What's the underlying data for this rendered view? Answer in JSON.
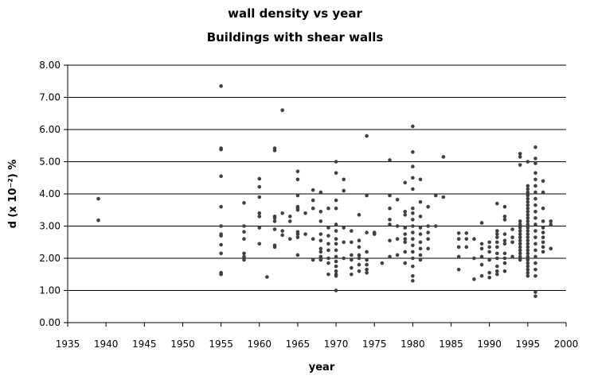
{
  "chart_data": {
    "type": "scatter",
    "title": "wall density vs year",
    "subtitle": "Buildings with shear walls",
    "xlabel": "year",
    "ylabel": "d (x 10⁻²) %",
    "xlim": [
      1935,
      2000
    ],
    "ylim": [
      0,
      8
    ],
    "xticks": [
      "1935",
      "1940",
      "1945",
      "1950",
      "1955",
      "1960",
      "1965",
      "1970",
      "1975",
      "1980",
      "1985",
      "1990",
      "1995",
      "2000"
    ],
    "yticks": [
      "0.00",
      "1.00",
      "2.00",
      "3.00",
      "4.00",
      "5.00",
      "6.00",
      "7.00",
      "8.00"
    ],
    "grid": "horizontal",
    "legend": "none",
    "marker_color": "#404040",
    "points": [
      [
        1939,
        3.85
      ],
      [
        1939,
        3.18
      ],
      [
        1955,
        7.35
      ],
      [
        1955,
        5.42
      ],
      [
        1955,
        5.38
      ],
      [
        1955,
        4.55
      ],
      [
        1955,
        3.6
      ],
      [
        1955,
        3.0
      ],
      [
        1955,
        2.75
      ],
      [
        1955,
        2.7
      ],
      [
        1955,
        2.42
      ],
      [
        1955,
        2.15
      ],
      [
        1955,
        1.55
      ],
      [
        1955,
        1.5
      ],
      [
        1958,
        3.72
      ],
      [
        1958,
        3.0
      ],
      [
        1958,
        2.82
      ],
      [
        1958,
        2.6
      ],
      [
        1958,
        2.15
      ],
      [
        1958,
        2.05
      ],
      [
        1958,
        1.95
      ],
      [
        1960,
        4.47
      ],
      [
        1960,
        4.22
      ],
      [
        1960,
        3.9
      ],
      [
        1960,
        3.4
      ],
      [
        1960,
        3.3
      ],
      [
        1960,
        2.95
      ],
      [
        1960,
        2.45
      ],
      [
        1961,
        1.42
      ],
      [
        1962,
        5.42
      ],
      [
        1962,
        5.35
      ],
      [
        1962,
        3.3
      ],
      [
        1962,
        3.25
      ],
      [
        1962,
        3.15
      ],
      [
        1962,
        2.9
      ],
      [
        1962,
        2.4
      ],
      [
        1962,
        2.35
      ],
      [
        1963,
        6.6
      ],
      [
        1963,
        3.4
      ],
      [
        1963,
        2.85
      ],
      [
        1963,
        2.72
      ],
      [
        1964,
        3.3
      ],
      [
        1964,
        3.15
      ],
      [
        1964,
        2.6
      ],
      [
        1965,
        4.7
      ],
      [
        1965,
        4.45
      ],
      [
        1965,
        3.95
      ],
      [
        1965,
        3.6
      ],
      [
        1965,
        3.55
      ],
      [
        1965,
        3.5
      ],
      [
        1965,
        2.82
      ],
      [
        1965,
        2.75
      ],
      [
        1965,
        2.65
      ],
      [
        1965,
        2.1
      ],
      [
        1966,
        3.4
      ],
      [
        1966,
        2.75
      ],
      [
        1967,
        4.12
      ],
      [
        1967,
        3.8
      ],
      [
        1967,
        3.55
      ],
      [
        1967,
        2.6
      ],
      [
        1967,
        1.95
      ],
      [
        1968,
        4.05
      ],
      [
        1968,
        3.45
      ],
      [
        1968,
        3.15
      ],
      [
        1968,
        2.75
      ],
      [
        1968,
        2.55
      ],
      [
        1968,
        2.3
      ],
      [
        1968,
        2.2
      ],
      [
        1968,
        2.05
      ],
      [
        1968,
        1.95
      ],
      [
        1969,
        3.55
      ],
      [
        1969,
        2.95
      ],
      [
        1969,
        2.7
      ],
      [
        1969,
        2.45
      ],
      [
        1969,
        2.25
      ],
      [
        1969,
        2.0
      ],
      [
        1969,
        1.85
      ],
      [
        1969,
        1.5
      ],
      [
        1970,
        5.0
      ],
      [
        1970,
        4.65
      ],
      [
        1970,
        3.8
      ],
      [
        1970,
        3.55
      ],
      [
        1970,
        3.05
      ],
      [
        1970,
        2.85
      ],
      [
        1970,
        2.6
      ],
      [
        1970,
        2.45
      ],
      [
        1970,
        2.25
      ],
      [
        1970,
        2.05
      ],
      [
        1970,
        1.9
      ],
      [
        1970,
        1.75
      ],
      [
        1970,
        1.6
      ],
      [
        1970,
        1.5
      ],
      [
        1970,
        1.45
      ],
      [
        1970,
        1.0
      ],
      [
        1971,
        4.45
      ],
      [
        1971,
        4.1
      ],
      [
        1971,
        2.95
      ],
      [
        1971,
        2.5
      ],
      [
        1971,
        2.0
      ],
      [
        1972,
        2.85
      ],
      [
        1972,
        2.5
      ],
      [
        1972,
        2.1
      ],
      [
        1972,
        1.95
      ],
      [
        1972,
        1.7
      ],
      [
        1972,
        1.5
      ],
      [
        1973,
        3.35
      ],
      [
        1973,
        2.55
      ],
      [
        1973,
        2.35
      ],
      [
        1973,
        2.1
      ],
      [
        1973,
        2.0
      ],
      [
        1973,
        1.8
      ],
      [
        1973,
        1.6
      ],
      [
        1974,
        5.8
      ],
      [
        1974,
        3.95
      ],
      [
        1974,
        2.8
      ],
      [
        1974,
        2.2
      ],
      [
        1974,
        1.95
      ],
      [
        1974,
        1.8
      ],
      [
        1974,
        1.65
      ],
      [
        1974,
        1.55
      ],
      [
        1975,
        2.8
      ],
      [
        1975,
        2.75
      ],
      [
        1976,
        1.85
      ],
      [
        1977,
        5.05
      ],
      [
        1977,
        3.95
      ],
      [
        1977,
        3.55
      ],
      [
        1977,
        3.2
      ],
      [
        1977,
        3.05
      ],
      [
        1977,
        2.55
      ],
      [
        1977,
        2.05
      ],
      [
        1978,
        3.82
      ],
      [
        1978,
        3.0
      ],
      [
        1978,
        2.6
      ],
      [
        1978,
        2.1
      ],
      [
        1979,
        4.35
      ],
      [
        1979,
        3.45
      ],
      [
        1979,
        3.35
      ],
      [
        1979,
        2.95
      ],
      [
        1979,
        2.75
      ],
      [
        1979,
        2.6
      ],
      [
        1979,
        2.5
      ],
      [
        1979,
        2.2
      ],
      [
        1979,
        1.85
      ],
      [
        1980,
        6.1
      ],
      [
        1980,
        5.3
      ],
      [
        1980,
        4.85
      ],
      [
        1980,
        4.5
      ],
      [
        1980,
        4.15
      ],
      [
        1980,
        3.55
      ],
      [
        1980,
        3.4
      ],
      [
        1980,
        3.2
      ],
      [
        1980,
        3.0
      ],
      [
        1980,
        2.8
      ],
      [
        1980,
        2.6
      ],
      [
        1980,
        2.4
      ],
      [
        1980,
        2.2
      ],
      [
        1980,
        2.0
      ],
      [
        1980,
        1.75
      ],
      [
        1980,
        1.45
      ],
      [
        1980,
        1.3
      ],
      [
        1981,
        4.45
      ],
      [
        1981,
        3.75
      ],
      [
        1981,
        3.3
      ],
      [
        1981,
        2.95
      ],
      [
        1981,
        2.75
      ],
      [
        1981,
        2.5
      ],
      [
        1981,
        2.3
      ],
      [
        1981,
        2.1
      ],
      [
        1981,
        1.95
      ],
      [
        1982,
        3.6
      ],
      [
        1982,
        3.0
      ],
      [
        1982,
        2.8
      ],
      [
        1982,
        2.6
      ],
      [
        1982,
        2.3
      ],
      [
        1983,
        3.95
      ],
      [
        1983,
        3.0
      ],
      [
        1984,
        5.15
      ],
      [
        1984,
        3.9
      ],
      [
        1986,
        2.78
      ],
      [
        1986,
        2.6
      ],
      [
        1986,
        2.35
      ],
      [
        1986,
        2.05
      ],
      [
        1986,
        1.65
      ],
      [
        1987,
        2.78
      ],
      [
        1987,
        2.6
      ],
      [
        1987,
        2.35
      ],
      [
        1988,
        2.6
      ],
      [
        1988,
        2.0
      ],
      [
        1988,
        1.35
      ],
      [
        1989,
        3.1
      ],
      [
        1989,
        2.45
      ],
      [
        1989,
        2.3
      ],
      [
        1989,
        2.05
      ],
      [
        1989,
        1.8
      ],
      [
        1989,
        1.45
      ],
      [
        1990,
        2.5
      ],
      [
        1990,
        2.35
      ],
      [
        1990,
        2.2
      ],
      [
        1990,
        1.95
      ],
      [
        1990,
        1.55
      ],
      [
        1990,
        1.4
      ],
      [
        1991,
        3.7
      ],
      [
        1991,
        2.85
      ],
      [
        1991,
        2.75
      ],
      [
        1991,
        2.65
      ],
      [
        1991,
        2.5
      ],
      [
        1991,
        2.35
      ],
      [
        1991,
        2.15
      ],
      [
        1991,
        2.0
      ],
      [
        1991,
        1.75
      ],
      [
        1991,
        1.6
      ],
      [
        1991,
        1.5
      ],
      [
        1992,
        3.6
      ],
      [
        1992,
        3.3
      ],
      [
        1992,
        3.2
      ],
      [
        1992,
        2.75
      ],
      [
        1992,
        2.55
      ],
      [
        1992,
        2.45
      ],
      [
        1992,
        2.15
      ],
      [
        1992,
        2.0
      ],
      [
        1992,
        1.85
      ],
      [
        1992,
        1.6
      ],
      [
        1993,
        2.9
      ],
      [
        1993,
        2.65
      ],
      [
        1993,
        2.5
      ],
      [
        1993,
        2.05
      ],
      [
        1994,
        5.25
      ],
      [
        1994,
        5.15
      ],
      [
        1994,
        4.9
      ],
      [
        1994,
        3.15
      ],
      [
        1994,
        3.05
      ],
      [
        1994,
        2.95
      ],
      [
        1994,
        2.85
      ],
      [
        1994,
        2.75
      ],
      [
        1994,
        2.65
      ],
      [
        1994,
        2.55
      ],
      [
        1994,
        2.45
      ],
      [
        1994,
        2.35
      ],
      [
        1994,
        2.25
      ],
      [
        1994,
        2.15
      ],
      [
        1994,
        2.05
      ],
      [
        1994,
        1.95
      ],
      [
        1995,
        5.0
      ],
      [
        1995,
        4.25
      ],
      [
        1995,
        4.15
      ],
      [
        1995,
        4.05
      ],
      [
        1995,
        3.95
      ],
      [
        1995,
        3.85
      ],
      [
        1995,
        3.75
      ],
      [
        1995,
        3.65
      ],
      [
        1995,
        3.55
      ],
      [
        1995,
        3.45
      ],
      [
        1995,
        3.35
      ],
      [
        1995,
        3.25
      ],
      [
        1995,
        3.15
      ],
      [
        1995,
        3.05
      ],
      [
        1995,
        2.95
      ],
      [
        1995,
        2.85
      ],
      [
        1995,
        2.75
      ],
      [
        1995,
        2.65
      ],
      [
        1995,
        2.55
      ],
      [
        1995,
        2.45
      ],
      [
        1995,
        2.35
      ],
      [
        1995,
        2.25
      ],
      [
        1995,
        2.15
      ],
      [
        1995,
        2.05
      ],
      [
        1995,
        1.95
      ],
      [
        1995,
        1.85
      ],
      [
        1995,
        1.75
      ],
      [
        1995,
        1.65
      ],
      [
        1995,
        1.55
      ],
      [
        1995,
        1.45
      ],
      [
        1996,
        5.45
      ],
      [
        1996,
        5.1
      ],
      [
        1996,
        4.95
      ],
      [
        1996,
        4.65
      ],
      [
        1996,
        4.45
      ],
      [
        1996,
        4.25
      ],
      [
        1996,
        4.05
      ],
      [
        1996,
        3.85
      ],
      [
        1996,
        3.65
      ],
      [
        1996,
        3.45
      ],
      [
        1996,
        3.25
      ],
      [
        1996,
        3.05
      ],
      [
        1996,
        2.85
      ],
      [
        1996,
        2.65
      ],
      [
        1996,
        2.45
      ],
      [
        1996,
        2.25
      ],
      [
        1996,
        2.05
      ],
      [
        1996,
        1.85
      ],
      [
        1996,
        1.65
      ],
      [
        1996,
        1.45
      ],
      [
        1996,
        0.95
      ],
      [
        1996,
        0.82
      ],
      [
        1997,
        4.4
      ],
      [
        1997,
        4.05
      ],
      [
        1997,
        3.55
      ],
      [
        1997,
        3.15
      ],
      [
        1997,
        2.95
      ],
      [
        1997,
        2.8
      ],
      [
        1997,
        2.65
      ],
      [
        1997,
        2.5
      ],
      [
        1997,
        2.35
      ],
      [
        1997,
        2.2
      ],
      [
        1998,
        3.15
      ],
      [
        1998,
        3.05
      ],
      [
        1998,
        2.3
      ]
    ]
  }
}
